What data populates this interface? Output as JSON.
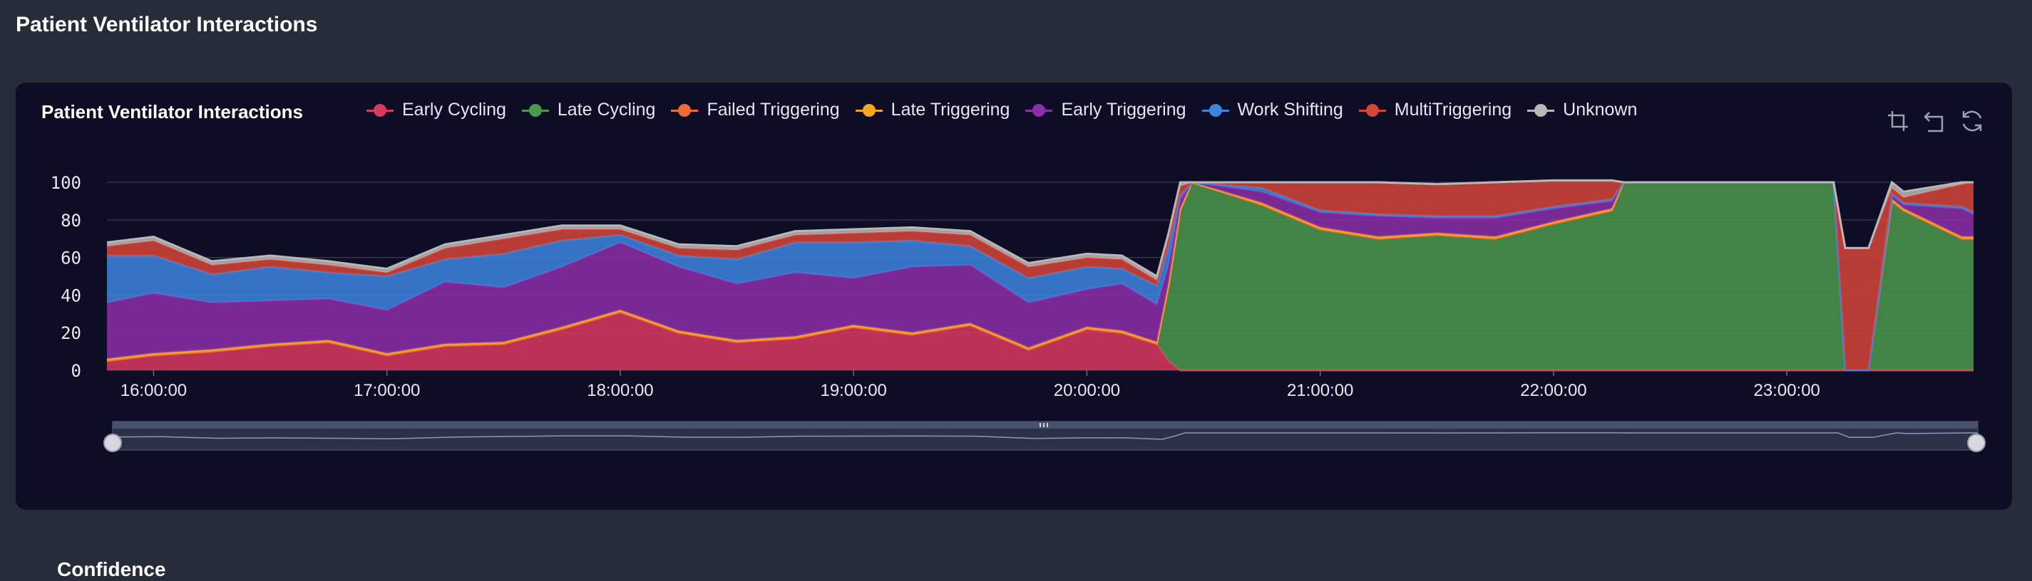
{
  "page": {
    "title": "Patient Ventilator Interactions"
  },
  "panel": {
    "title": "Patient Ventilator Interactions",
    "next_section_title": "Confidence"
  },
  "toolbox": [
    {
      "name": "zoom-icon"
    },
    {
      "name": "zoom-reset-icon"
    },
    {
      "name": "restore-icon"
    }
  ],
  "chart_data": {
    "type": "area",
    "stacked": true,
    "legend_position": "top",
    "grid": true,
    "ylim": [
      0,
      100
    ],
    "y_ticks": [
      "100",
      "80",
      "60",
      "40",
      "20",
      "0"
    ],
    "x_tick_labels": [
      "16:00:00",
      "17:00:00",
      "18:00:00",
      "19:00:00",
      "20:00:00",
      "21:00:00",
      "22:00:00",
      "23:00:00"
    ],
    "x_range_hours": [
      15.8,
      23.8
    ],
    "x": [
      15.8,
      16.0,
      16.25,
      16.5,
      16.75,
      17.0,
      17.25,
      17.5,
      17.75,
      18.0,
      18.25,
      18.5,
      18.75,
      19.0,
      19.25,
      19.5,
      19.75,
      20.0,
      20.15,
      20.3,
      20.35,
      20.4,
      20.45,
      20.75,
      21.0,
      21.25,
      21.5,
      21.75,
      22.0,
      22.25,
      22.3,
      22.35,
      22.5,
      22.75,
      23.0,
      23.15,
      23.2,
      23.25,
      23.35,
      23.45,
      23.5,
      23.75,
      23.8
    ],
    "series": [
      {
        "name": "Early Cycling",
        "color": "#d93a5f",
        "values": [
          5,
          8,
          10,
          13,
          15,
          8,
          13,
          14,
          22,
          31,
          20,
          15,
          17,
          23,
          19,
          24,
          11,
          22,
          20,
          14,
          5,
          0,
          0,
          0,
          0,
          0,
          0,
          0,
          0,
          0,
          0,
          0,
          0,
          0,
          0,
          0,
          0,
          0,
          0,
          0,
          0,
          0,
          0
        ]
      },
      {
        "name": "Late Cycling",
        "color": "#4b9a4b",
        "values": [
          0,
          0,
          0,
          0,
          0,
          0,
          0,
          0,
          0,
          0,
          0,
          0,
          0,
          0,
          0,
          0,
          0,
          0,
          0,
          0,
          40,
          85,
          100,
          88,
          75,
          70,
          72,
          70,
          78,
          85,
          100,
          100,
          100,
          100,
          100,
          100,
          100,
          0,
          0,
          90,
          85,
          70,
          70
        ]
      },
      {
        "name": "Failed Triggering",
        "color": "#f06a3a",
        "values": [
          0,
          0,
          0,
          0,
          0,
          0,
          0,
          0,
          0,
          0,
          0,
          0,
          0,
          0,
          0,
          0,
          0,
          0,
          0,
          0,
          0,
          0,
          0,
          0,
          0,
          0,
          0,
          0,
          0,
          0,
          0,
          0,
          0,
          0,
          0,
          0,
          0,
          0,
          0,
          0,
          0,
          0,
          0
        ]
      },
      {
        "name": "Late Triggering",
        "color": "#f5a623",
        "values": [
          1,
          1,
          1,
          1,
          1,
          1,
          1,
          1,
          1,
          1,
          1,
          1,
          1,
          1,
          1,
          1,
          1,
          1,
          1,
          1,
          1,
          1,
          0,
          1,
          1,
          1,
          1,
          1,
          1,
          1,
          0,
          0,
          0,
          0,
          0,
          0,
          0,
          0,
          0,
          1,
          1,
          1,
          1
        ]
      },
      {
        "name": "Early Triggering",
        "color": "#8b2fa8",
        "values": [
          30,
          32,
          25,
          23,
          22,
          23,
          33,
          29,
          32,
          36,
          34,
          30,
          34,
          25,
          35,
          31,
          24,
          20,
          25,
          20,
          10,
          5,
          0,
          6,
          8,
          11,
          8,
          10,
          7,
          4,
          0,
          0,
          0,
          0,
          0,
          0,
          0,
          0,
          0,
          2,
          2,
          15,
          12
        ]
      },
      {
        "name": "Work Shifting",
        "color": "#3d86e0",
        "values": [
          25,
          20,
          15,
          18,
          14,
          18,
          12,
          18,
          14,
          4,
          6,
          13,
          16,
          19,
          14,
          10,
          13,
          12,
          8,
          10,
          10,
          2,
          0,
          2,
          1,
          1,
          1,
          1,
          1,
          1,
          0,
          0,
          0,
          0,
          0,
          0,
          0,
          0,
          0,
          1,
          1,
          1,
          1
        ]
      },
      {
        "name": "MultiTriggering",
        "color": "#d6453a",
        "values": [
          5,
          8,
          5,
          4,
          4,
          2,
          6,
          8,
          6,
          3,
          4,
          5,
          4,
          5,
          5,
          6,
          6,
          5,
          5,
          3,
          5,
          5,
          0,
          3,
          15,
          17,
          17,
          18,
          14,
          10,
          0,
          0,
          0,
          0,
          0,
          0,
          0,
          65,
          65,
          3,
          3,
          12,
          16
        ]
      },
      {
        "name": "Unknown",
        "color": "#b8b8b8",
        "values": [
          2,
          2,
          2,
          2,
          2,
          2,
          2,
          2,
          2,
          2,
          2,
          2,
          2,
          2,
          2,
          2,
          2,
          2,
          2,
          2,
          2,
          2,
          0,
          0,
          0,
          0,
          0,
          0,
          0,
          0,
          0,
          0,
          0,
          0,
          0,
          0,
          0,
          0,
          0,
          3,
          3,
          1,
          0
        ]
      }
    ],
    "data_zoom": {
      "start": 0,
      "end": 100
    }
  }
}
